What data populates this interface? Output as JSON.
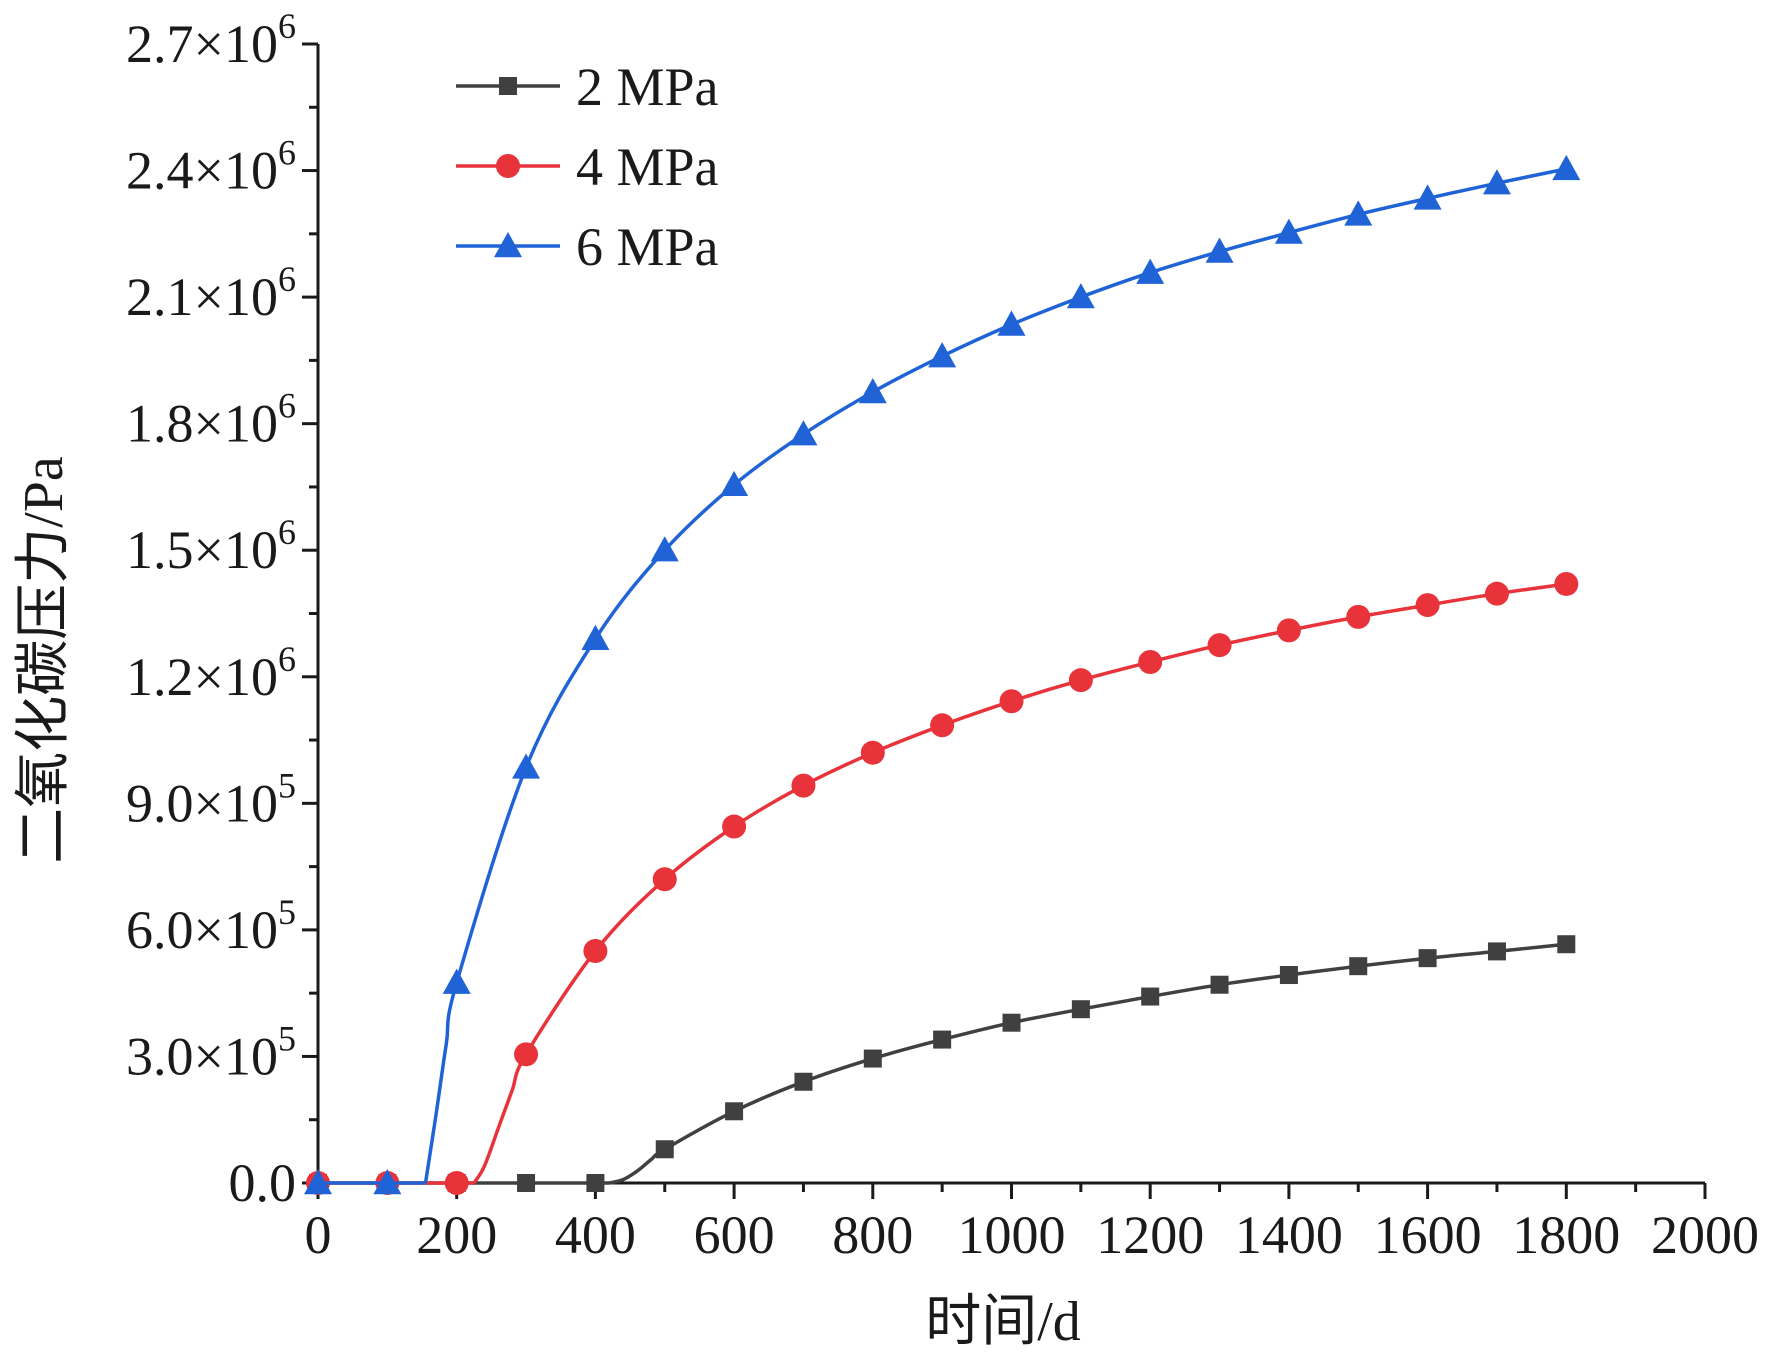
{
  "chart_data": {
    "type": "line",
    "title": "",
    "xlabel": "时间/d",
    "ylabel": "二氧化碳压力/Pa",
    "xlim": [
      0,
      2000
    ],
    "ylim": [
      0,
      2700000
    ],
    "x_ticks": [
      {
        "value": 0,
        "label": "0"
      },
      {
        "value": 200,
        "label": "200"
      },
      {
        "value": 400,
        "label": "400"
      },
      {
        "value": 600,
        "label": "600"
      },
      {
        "value": 800,
        "label": "800"
      },
      {
        "value": 1000,
        "label": "1000"
      },
      {
        "value": 1200,
        "label": "1200"
      },
      {
        "value": 1400,
        "label": "1400"
      },
      {
        "value": 1600,
        "label": "1600"
      },
      {
        "value": 1800,
        "label": "1800"
      },
      {
        "value": 2000,
        "label": "2000"
      }
    ],
    "y_ticks": [
      {
        "value": 0,
        "label": "0.0",
        "exp": ""
      },
      {
        "value": 300000,
        "label": "3.0×10",
        "exp": "5"
      },
      {
        "value": 600000,
        "label": "6.0×10",
        "exp": "5"
      },
      {
        "value": 900000,
        "label": "9.0×10",
        "exp": "5"
      },
      {
        "value": 1200000,
        "label": "1.2×10",
        "exp": "6"
      },
      {
        "value": 1500000,
        "label": "1.5×10",
        "exp": "6"
      },
      {
        "value": 1800000,
        "label": "1.8×10",
        "exp": "6"
      },
      {
        "value": 2100000,
        "label": "2.1×10",
        "exp": "6"
      },
      {
        "value": 2400000,
        "label": "2.4×10",
        "exp": "6"
      },
      {
        "value": 2700000,
        "label": "2.7×10",
        "exp": "6"
      }
    ],
    "legend_position": "top-left",
    "series": [
      {
        "name": "2 MPa",
        "color": "#404040",
        "marker": "square",
        "x": [
          0,
          100,
          200,
          300,
          400,
          500,
          600,
          700,
          800,
          900,
          1000,
          1100,
          1200,
          1300,
          1400,
          1500,
          1600,
          1700,
          1800
        ],
        "values": [
          0,
          0,
          0,
          0,
          0,
          80000,
          170000,
          240000,
          295000,
          340000,
          380000,
          412000,
          442000,
          470000,
          493000,
          514000,
          533000,
          549000,
          566000
        ],
        "curve_x": [
          420,
          440,
          460,
          480
        ],
        "curve_values": [
          0,
          8000,
          28000,
          55000
        ]
      },
      {
        "name": "4 MPa",
        "color": "#e8333a",
        "marker": "circle",
        "x": [
          0,
          100,
          200,
          300,
          400,
          500,
          600,
          700,
          800,
          900,
          1000,
          1100,
          1200,
          1300,
          1400,
          1500,
          1600,
          1700,
          1800
        ],
        "values": [
          0,
          0,
          0,
          305000,
          550000,
          720000,
          845000,
          942000,
          1020000,
          1085000,
          1142000,
          1192000,
          1235000,
          1275000,
          1310000,
          1342000,
          1370000,
          1397000,
          1420000
        ],
        "curve_x": [
          210,
          225,
          240,
          260,
          280
        ],
        "curve_values": [
          0,
          0,
          40000,
          130000,
          220000
        ]
      },
      {
        "name": "6 MPa",
        "color": "#1f63d6",
        "marker": "triangle",
        "x": [
          0,
          100,
          200,
          300,
          400,
          500,
          600,
          700,
          800,
          900,
          1000,
          1100,
          1200,
          1300,
          1400,
          1500,
          1600,
          1700,
          1800
        ],
        "values": [
          0,
          0,
          475000,
          985000,
          1290000,
          1500000,
          1655000,
          1775000,
          1875000,
          1960000,
          2035000,
          2100000,
          2158000,
          2208000,
          2253000,
          2296000,
          2334000,
          2370000,
          2404000
        ],
        "curve_x": [
          140,
          155,
          170,
          185
        ],
        "curve_values": [
          0,
          0,
          160000,
          330000
        ]
      }
    ]
  }
}
